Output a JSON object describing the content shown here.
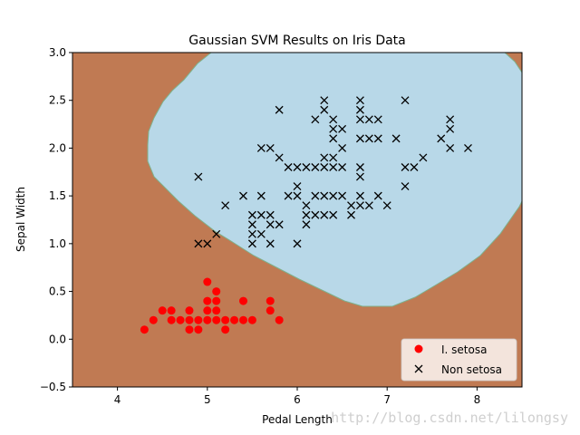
{
  "chart_data": {
    "type": "scatter",
    "title": "Gaussian SVM Results on Iris Data",
    "xlabel": "Pedal Length",
    "ylabel": "Sepal Width",
    "xlim": [
      3.5,
      8.5
    ],
    "ylim": [
      -0.5,
      3.0
    ],
    "xticks": [
      "4",
      "5",
      "6",
      "7",
      "8"
    ],
    "yticks": [
      "−0.5",
      "0.0",
      "0.5",
      "1.0",
      "1.5",
      "2.0",
      "2.5",
      "3.0"
    ],
    "legend_position": "bottom-right",
    "background_colors": {
      "setosa_region": "#c07a53",
      "non_setosa_region": "#b8d8e8"
    },
    "series": [
      {
        "name": "I. setosa",
        "marker": "circle",
        "color": "#ff0000",
        "points": [
          [
            4.3,
            0.1
          ],
          [
            4.4,
            0.2
          ],
          [
            4.5,
            0.3
          ],
          [
            4.6,
            0.2
          ],
          [
            4.6,
            0.3
          ],
          [
            4.7,
            0.2
          ],
          [
            4.8,
            0.1
          ],
          [
            4.8,
            0.2
          ],
          [
            4.8,
            0.3
          ],
          [
            4.9,
            0.1
          ],
          [
            4.9,
            0.2
          ],
          [
            5.0,
            0.2
          ],
          [
            5.0,
            0.3
          ],
          [
            5.0,
            0.4
          ],
          [
            5.0,
            0.6
          ],
          [
            5.1,
            0.2
          ],
          [
            5.1,
            0.3
          ],
          [
            5.1,
            0.4
          ],
          [
            5.1,
            0.5
          ],
          [
            5.2,
            0.1
          ],
          [
            5.2,
            0.2
          ],
          [
            5.3,
            0.2
          ],
          [
            5.4,
            0.2
          ],
          [
            5.4,
            0.4
          ],
          [
            5.5,
            0.2
          ],
          [
            5.7,
            0.3
          ],
          [
            5.7,
            0.4
          ],
          [
            5.8,
            0.2
          ]
        ]
      },
      {
        "name": "Non setosa",
        "marker": "x",
        "color": "#000000",
        "points": [
          [
            6.3,
            2.5
          ],
          [
            6.7,
            2.5
          ],
          [
            7.2,
            2.5
          ],
          [
            5.8,
            2.4
          ],
          [
            6.3,
            2.4
          ],
          [
            6.7,
            2.4
          ],
          [
            6.2,
            2.3
          ],
          [
            6.4,
            2.3
          ],
          [
            6.7,
            2.3
          ],
          [
            6.8,
            2.3
          ],
          [
            6.9,
            2.3
          ],
          [
            7.7,
            2.3
          ],
          [
            6.4,
            2.2
          ],
          [
            6.5,
            2.2
          ],
          [
            7.7,
            2.2
          ],
          [
            6.4,
            2.1
          ],
          [
            6.7,
            2.1
          ],
          [
            6.8,
            2.1
          ],
          [
            6.9,
            2.1
          ],
          [
            7.1,
            2.1
          ],
          [
            7.6,
            2.1
          ],
          [
            5.6,
            2.0
          ],
          [
            5.7,
            2.0
          ],
          [
            6.5,
            2.0
          ],
          [
            7.7,
            2.0
          ],
          [
            7.9,
            2.0
          ],
          [
            5.8,
            1.9
          ],
          [
            6.3,
            1.9
          ],
          [
            6.4,
            1.9
          ],
          [
            7.4,
            1.9
          ],
          [
            5.9,
            1.8
          ],
          [
            6.0,
            1.8
          ],
          [
            6.1,
            1.8
          ],
          [
            6.2,
            1.8
          ],
          [
            6.3,
            1.8
          ],
          [
            6.4,
            1.8
          ],
          [
            6.5,
            1.8
          ],
          [
            6.7,
            1.8
          ],
          [
            7.2,
            1.8
          ],
          [
            7.3,
            1.8
          ],
          [
            4.9,
            1.7
          ],
          [
            6.7,
            1.7
          ],
          [
            6.0,
            1.6
          ],
          [
            7.2,
            1.6
          ],
          [
            5.4,
            1.5
          ],
          [
            5.6,
            1.5
          ],
          [
            5.9,
            1.5
          ],
          [
            6.0,
            1.5
          ],
          [
            6.2,
            1.5
          ],
          [
            6.3,
            1.5
          ],
          [
            6.4,
            1.5
          ],
          [
            6.5,
            1.5
          ],
          [
            6.7,
            1.5
          ],
          [
            6.9,
            1.5
          ],
          [
            5.2,
            1.4
          ],
          [
            6.1,
            1.4
          ],
          [
            6.6,
            1.4
          ],
          [
            6.7,
            1.4
          ],
          [
            6.8,
            1.4
          ],
          [
            7.0,
            1.4
          ],
          [
            5.5,
            1.3
          ],
          [
            5.6,
            1.3
          ],
          [
            5.7,
            1.3
          ],
          [
            6.1,
            1.3
          ],
          [
            6.2,
            1.3
          ],
          [
            6.3,
            1.3
          ],
          [
            6.4,
            1.3
          ],
          [
            6.6,
            1.3
          ],
          [
            5.5,
            1.2
          ],
          [
            5.7,
            1.2
          ],
          [
            5.8,
            1.2
          ],
          [
            6.1,
            1.2
          ],
          [
            5.1,
            1.1
          ],
          [
            5.5,
            1.1
          ],
          [
            5.6,
            1.1
          ],
          [
            4.9,
            1.0
          ],
          [
            5.0,
            1.0
          ],
          [
            5.5,
            1.0
          ],
          [
            5.7,
            1.0
          ],
          [
            6.0,
            1.0
          ]
        ]
      }
    ]
  },
  "watermark": "http://blog.csdn.net/lilongsy"
}
